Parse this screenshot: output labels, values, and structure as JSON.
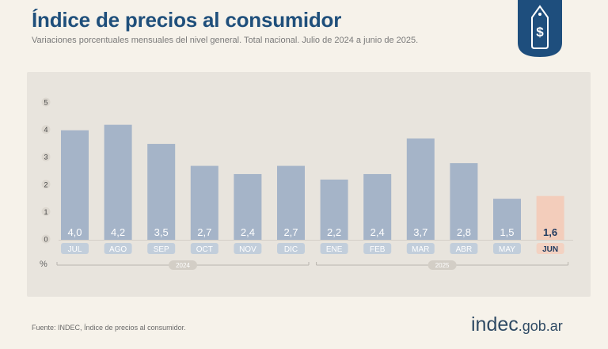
{
  "header": {
    "title": "Índice de precios al consumidor",
    "subtitle": "Variaciones porcentuales mensuales del nivel general. Total nacional. Julio de 2024 a junio de 2025."
  },
  "badge": {
    "icon": "price-tag-dollar-icon",
    "symbol": "$",
    "color": "#1e4e7d"
  },
  "chart_data": {
    "type": "bar",
    "categories": [
      "JUL",
      "AGO",
      "SEP",
      "OCT",
      "NOV",
      "DIC",
      "ENE",
      "FEB",
      "MAR",
      "ABR",
      "MAY",
      "JUN"
    ],
    "values": [
      4.0,
      4.2,
      3.5,
      2.7,
      2.4,
      2.7,
      2.2,
      2.4,
      3.7,
      2.8,
      1.5,
      1.6
    ],
    "value_labels": [
      "4,0",
      "4,2",
      "3,5",
      "2,7",
      "2,4",
      "2,7",
      "2,2",
      "2,4",
      "3,7",
      "2,8",
      "1,5",
      "1,6"
    ],
    "yticks": [
      "0",
      "1",
      "2",
      "3",
      "4",
      "5"
    ],
    "ylim": [
      0,
      5
    ],
    "ylabel": "%",
    "year_groups": [
      {
        "label": "2024",
        "count": 6
      },
      {
        "label": "2025",
        "count": 6
      }
    ],
    "highlight": "JUN",
    "colors": {
      "bar": "#a5b4c8",
      "highlight_bar": "#f3cdbb",
      "panel": "#e8e4dd",
      "label_pill": "#c2cedb",
      "highlight_pill": "#f3d2c2",
      "text": "#4b5563",
      "highlight_text": "#1f3a5f"
    },
    "grid": false
  },
  "footer": {
    "source": "Fuente: INDEC, Índice de precios al consumidor.",
    "brand_main": "indec",
    "brand_suffix": ".gob.ar"
  }
}
